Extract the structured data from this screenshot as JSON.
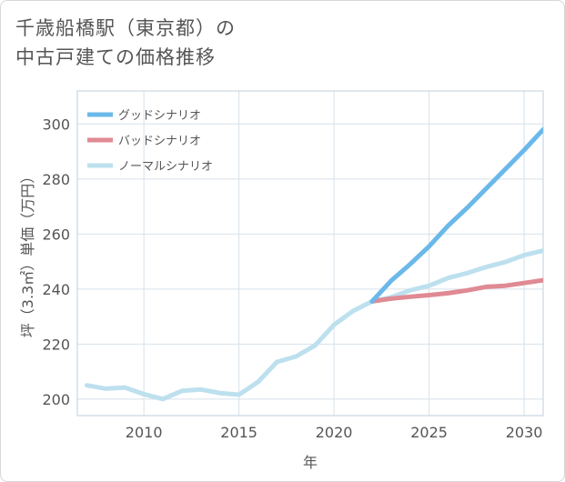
{
  "title_lines": [
    "千歳船橋駅（東京都）の",
    "中古戸建ての価格推移"
  ],
  "chart_data": {
    "type": "line",
    "title": "千歳船橋駅（東京都）の中古戸建ての価格推移",
    "xlabel": "年",
    "ylabel": "坪（3.3㎡）単価（万円）",
    "xlim": [
      2006.5,
      2031
    ],
    "ylim": [
      194,
      312
    ],
    "x_ticks": [
      2010,
      2015,
      2020,
      2025,
      2030
    ],
    "y_ticks": [
      200,
      220,
      240,
      260,
      280,
      300
    ],
    "grid": true,
    "legend_position": "top-left",
    "series": [
      {
        "name": "グッドシナリオ",
        "color": "#6bb8ea",
        "x": [
          2022,
          2023,
          2024,
          2025,
          2026,
          2027,
          2028,
          2029,
          2030,
          2031
        ],
        "y": [
          235.5,
          243,
          249,
          255.5,
          263,
          269.5,
          276.5,
          283.5,
          290.5,
          298
        ]
      },
      {
        "name": "バッドシナリオ",
        "color": "#e08a93",
        "x": [
          2022,
          2023,
          2024,
          2025,
          2026,
          2027,
          2028,
          2029,
          2030,
          2031
        ],
        "y": [
          235.5,
          236.5,
          237.2,
          237.8,
          238.5,
          239.5,
          240.8,
          241.2,
          242.2,
          243.2
        ]
      },
      {
        "name": "ノーマルシナリオ",
        "color": "#bde0ee",
        "x": [
          2007,
          2008,
          2009,
          2010,
          2011,
          2012,
          2013,
          2014,
          2015,
          2016,
          2017,
          2018,
          2019,
          2020,
          2021,
          2022,
          2023,
          2024,
          2025,
          2026,
          2027,
          2028,
          2029,
          2030,
          2031
        ],
        "y": [
          205,
          203.8,
          204.2,
          201.8,
          200,
          203,
          203.5,
          202.2,
          201.6,
          206.2,
          213.5,
          215.5,
          219.5,
          227,
          232,
          235.5,
          237,
          239.5,
          241.2,
          244,
          245.8,
          248,
          249.8,
          252.3,
          254
        ]
      }
    ]
  }
}
